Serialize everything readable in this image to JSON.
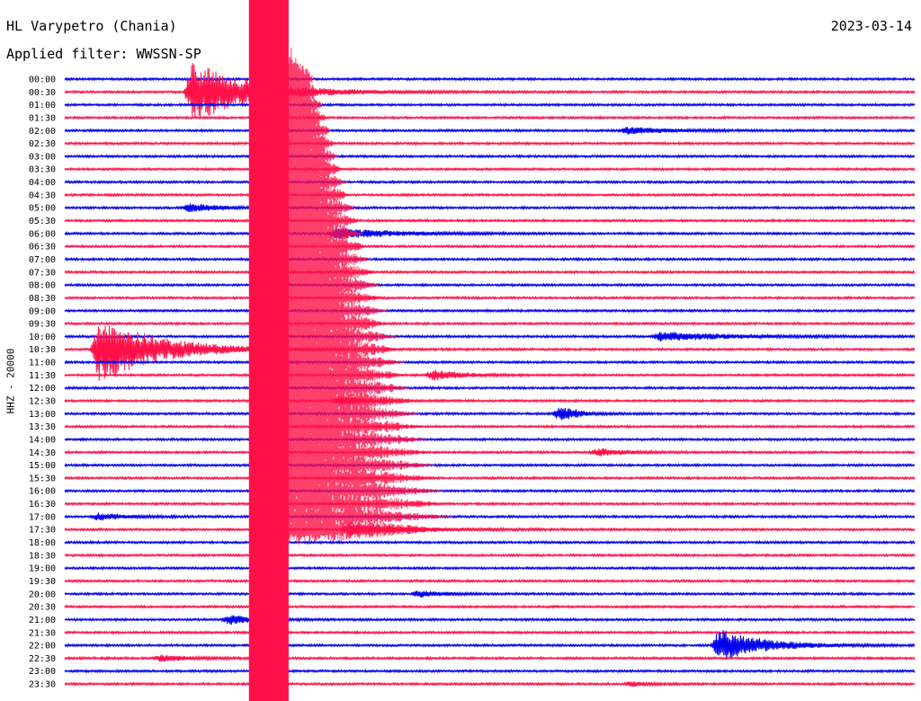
{
  "header": {
    "station": "HL Varypetro (Chania)",
    "date": "2023-03-14",
    "filter_prefix": "Applied filter:",
    "filter": "WWSSN-SP"
  },
  "colors": {
    "even_trace": "#0000ee",
    "odd_trace": "#ff1048",
    "text": "#000000"
  },
  "chart_data": {
    "type": "line",
    "title": "HL Varypetro (Chania)",
    "ylabel": "HHZ - 20000",
    "xlabel": "",
    "grid": false,
    "legend": "none",
    "row_labels": [
      "00:00",
      "00:30",
      "01:00",
      "01:30",
      "02:00",
      "02:30",
      "03:00",
      "03:30",
      "04:00",
      "04:30",
      "05:00",
      "05:30",
      "06:00",
      "06:30",
      "07:00",
      "07:30",
      "08:00",
      "08:30",
      "09:00",
      "09:30",
      "10:00",
      "10:30",
      "11:00",
      "11:30",
      "12:00",
      "12:30",
      "13:00",
      "13:30",
      "14:00",
      "14:30",
      "15:00",
      "15:30",
      "16:00",
      "16:30",
      "17:00",
      "17:30",
      "18:00",
      "18:30",
      "19:00",
      "19:30",
      "20:00",
      "20:30",
      "21:00",
      "21:30",
      "22:00",
      "22:30",
      "23:00",
      "23:30"
    ],
    "row_minutes": 30,
    "background_amplitude": 1,
    "events": [
      {
        "row": 1,
        "minute": 4.5,
        "amplitude": 35,
        "decay_min": 2.0
      },
      {
        "row": 4,
        "minute": 19.8,
        "amplitude": 4,
        "decay_min": 1.5
      },
      {
        "row": 10,
        "minute": 4.4,
        "amplitude": 5,
        "decay_min": 1.0
      },
      {
        "row": 12,
        "minute": 9.6,
        "amplitude": 6,
        "decay_min": 2.0
      },
      {
        "row": 20,
        "minute": 21.0,
        "amplitude": 5,
        "decay_min": 2.5
      },
      {
        "row": 21,
        "minute": 1.2,
        "amplitude": 38,
        "decay_min": 2.0
      },
      {
        "row": 23,
        "minute": 13.0,
        "amplitude": 6,
        "decay_min": 1.0
      },
      {
        "row": 25,
        "minute": 9.7,
        "amplitude": 5,
        "decay_min": 1.0
      },
      {
        "row": 26,
        "minute": 17.5,
        "amplitude": 9,
        "decay_min": 0.6
      },
      {
        "row": 29,
        "minute": 18.8,
        "amplitude": 4,
        "decay_min": 1.0
      },
      {
        "row": 34,
        "minute": 1.2,
        "amplitude": 4,
        "decay_min": 1.0
      },
      {
        "row": 35,
        "minute": 10.0,
        "amplitude": 8,
        "decay_min": 2.0
      },
      {
        "row": 40,
        "minute": 12.5,
        "amplitude": 4,
        "decay_min": 0.8
      },
      {
        "row": 42,
        "minute": 5.8,
        "amplitude": 5,
        "decay_min": 1.0
      },
      {
        "row": 44,
        "minute": 23.1,
        "amplitude": 18,
        "decay_min": 1.5
      },
      {
        "row": 45,
        "minute": 3.4,
        "amplitude": 4,
        "decay_min": 1.0
      },
      {
        "row": 47,
        "minute": 20.0,
        "amplitude": 3,
        "decay_min": 0.5
      }
    ],
    "major_event": {
      "start_row": 0,
      "end_row": 47,
      "onset_minute": 6.5,
      "saturated_minutes": 1.4,
      "coda_until_row": 35,
      "coda_minutes": 6.0
    }
  }
}
